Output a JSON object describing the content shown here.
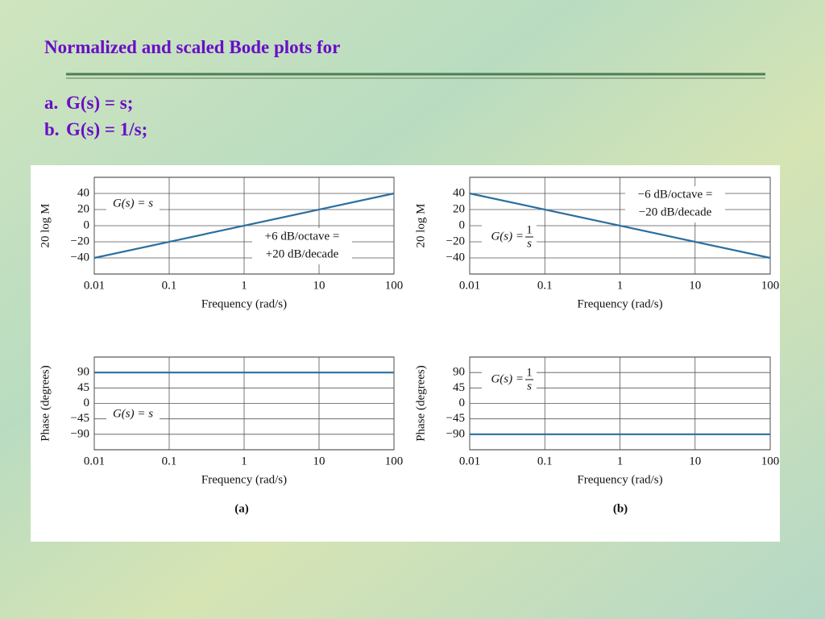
{
  "slide": {
    "title": "Normalized and scaled Bode plots for",
    "items": [
      {
        "label": "a.",
        "text": "G(s) = s;"
      },
      {
        "label": "b.",
        "text": "G(s) = 1/s;"
      }
    ],
    "captions": [
      "(a)",
      "(b)"
    ]
  },
  "chart_data": [
    {
      "type": "line",
      "xscale": "log",
      "x": [
        0.01,
        100
      ],
      "series": [
        {
          "name": "G(s) = s",
          "color": "#2a6fa0",
          "values": [
            -40,
            40
          ]
        }
      ],
      "xlim": [
        0.01,
        100
      ],
      "xticks": [
        0.01,
        0.1,
        1,
        10,
        100
      ],
      "ylim": [
        -60,
        60
      ],
      "yticks": [
        {
          "value": -40,
          "label": "−40"
        },
        {
          "value": -20,
          "label": "−20"
        },
        0,
        20,
        40
      ],
      "xlabel": "Frequency (rad/s)",
      "ylabel": "20 log M",
      "grid": true,
      "annotations": [
        {
          "text": "G(s) = s"
        },
        {
          "lines": [
            "+6 dB/octave =",
            "+20 dB/decade"
          ]
        }
      ]
    },
    {
      "type": "line",
      "xscale": "log",
      "x": [
        0.01,
        100
      ],
      "series": [
        {
          "name": "G(s) = 1/s",
          "color": "#2a6fa0",
          "values": [
            40,
            -40
          ]
        }
      ],
      "xlim": [
        0.01,
        100
      ],
      "xticks": [
        0.01,
        0.1,
        1,
        10,
        100
      ],
      "ylim": [
        -60,
        60
      ],
      "yticks": [
        {
          "value": -40,
          "label": "−40"
        },
        {
          "value": -20,
          "label": "−20"
        },
        0,
        20,
        40
      ],
      "xlabel": "Frequency (rad/s)",
      "ylabel": "20 log M",
      "grid": true,
      "annotations": [
        {
          "lines": [
            "−6 dB/octave =",
            "−20 dB/decade"
          ]
        },
        {
          "text": "G(s) =",
          "numerator": "1",
          "denominator": "s"
        }
      ]
    },
    {
      "type": "line",
      "xscale": "log",
      "x": [
        0.01,
        100
      ],
      "series": [
        {
          "name": "G(s) = s",
          "color": "#2a6fa0",
          "values": [
            90,
            90
          ]
        }
      ],
      "xlim": [
        0.01,
        100
      ],
      "xticks": [
        0.01,
        0.1,
        1,
        10,
        100
      ],
      "ylim": [
        -135,
        135
      ],
      "yticks": [
        {
          "value": -90,
          "label": "−90"
        },
        {
          "value": -45,
          "label": "−45"
        },
        0,
        45,
        90
      ],
      "xlabel": "Frequency (rad/s)",
      "ylabel": "Phase (degrees)",
      "grid": true,
      "annotations": [
        {
          "text": "G(s) = s"
        }
      ]
    },
    {
      "type": "line",
      "xscale": "log",
      "x": [
        0.01,
        100
      ],
      "series": [
        {
          "name": "G(s) = 1/s",
          "color": "#2a6fa0",
          "values": [
            -90,
            -90
          ]
        }
      ],
      "xlim": [
        0.01,
        100
      ],
      "xticks": [
        0.01,
        0.1,
        1,
        10,
        100
      ],
      "ylim": [
        -135,
        135
      ],
      "yticks": [
        {
          "value": -90,
          "label": "−90"
        },
        {
          "value": -45,
          "label": "−45"
        },
        0,
        45,
        90
      ],
      "xlabel": "Frequency (rad/s)",
      "ylabel": "Phase (degrees)",
      "grid": true,
      "annotations": [
        {
          "text": "G(s) =",
          "numerator": "1",
          "denominator": "s"
        }
      ]
    }
  ]
}
